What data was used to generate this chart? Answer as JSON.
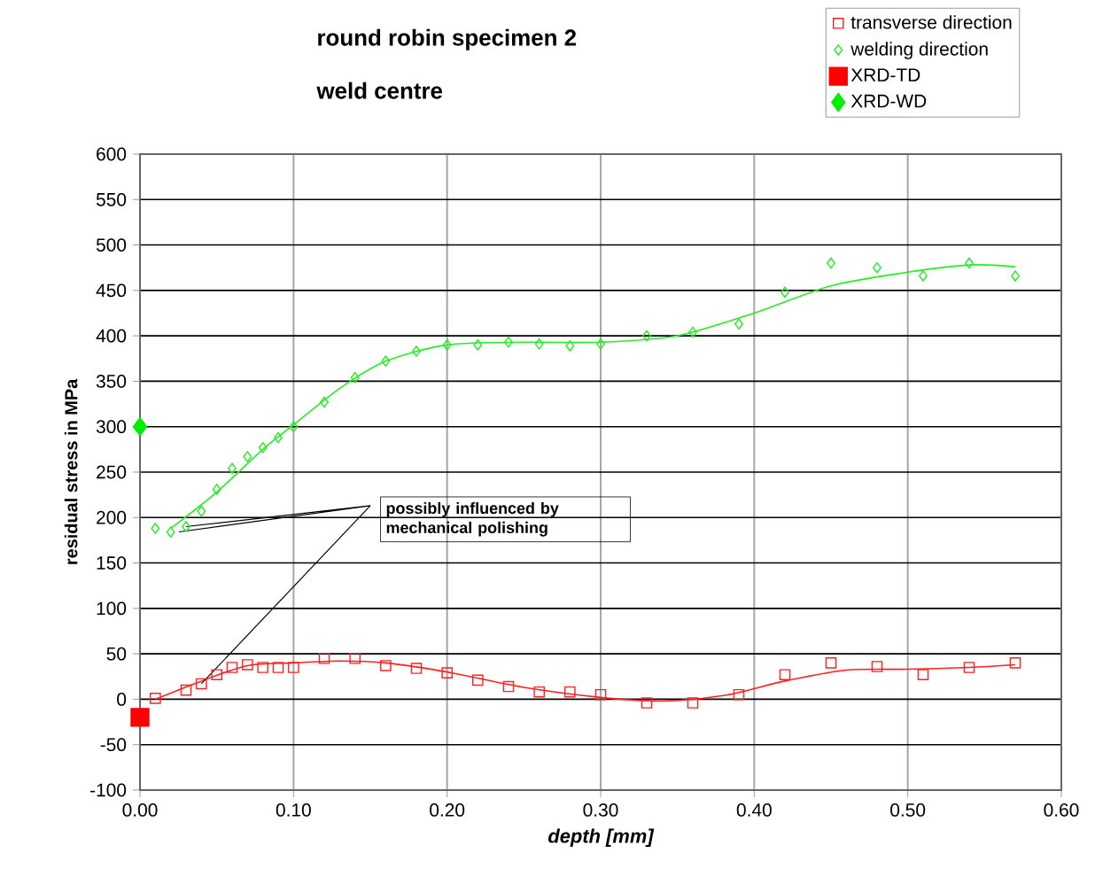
{
  "chart_data": {
    "type": "scatter",
    "title": "round robin specimen 2",
    "subtitle": "weld centre",
    "xlabel": "depth [mm]",
    "ylabel": "residual stress in MPa",
    "xlim": [
      0,
      0.6
    ],
    "ylim": [
      -100,
      600
    ],
    "xticks": [
      {
        "value": 0,
        "label": "0.00"
      },
      {
        "value": 0.1,
        "label": "0.10"
      },
      {
        "value": 0.2,
        "label": "0.20"
      },
      {
        "value": 0.3,
        "label": "0.30"
      },
      {
        "value": 0.4,
        "label": "0.40"
      },
      {
        "value": 0.5,
        "label": "0.50"
      },
      {
        "value": 0.6,
        "label": "0.60"
      }
    ],
    "yticks": [
      -100,
      -50,
      0,
      50,
      100,
      150,
      200,
      250,
      300,
      350,
      400,
      450,
      500,
      550,
      600
    ],
    "grid": true,
    "legend": "top right",
    "annotations": [
      {
        "text": "possibly influenced by mechanical polishing",
        "x": 0.03,
        "y": 190
      }
    ],
    "series": [
      {
        "name": "transverse direction",
        "color": "#ff2020",
        "marker": "square",
        "x": [
          0.01,
          0.03,
          0.04,
          0.05,
          0.06,
          0.07,
          0.08,
          0.09,
          0.1,
          0.12,
          0.14,
          0.16,
          0.18,
          0.2,
          0.22,
          0.24,
          0.26,
          0.28,
          0.3,
          0.33,
          0.36,
          0.39,
          0.42,
          0.45,
          0.48,
          0.51,
          0.54,
          0.57
        ],
        "values": [
          1,
          10,
          17,
          27,
          35,
          38,
          35,
          35,
          35,
          45,
          45,
          37,
          34,
          29,
          21,
          14,
          8,
          8,
          5,
          -4,
          -4,
          5,
          27,
          40,
          36,
          27,
          35,
          40
        ]
      },
      {
        "name": "welding direction",
        "color": "#22ee22",
        "marker": "diamond",
        "x": [
          0.01,
          0.02,
          0.03,
          0.04,
          0.05,
          0.06,
          0.07,
          0.08,
          0.09,
          0.1,
          0.12,
          0.14,
          0.16,
          0.18,
          0.2,
          0.22,
          0.24,
          0.26,
          0.28,
          0.3,
          0.33,
          0.36,
          0.39,
          0.42,
          0.45,
          0.48,
          0.51,
          0.54,
          0.57
        ],
        "values": [
          188,
          184,
          190,
          207,
          231,
          254,
          267,
          277,
          288,
          300,
          327,
          354,
          372,
          383,
          390,
          390,
          393,
          391,
          389,
          391,
          400,
          404,
          413,
          448,
          480,
          475,
          466,
          480,
          466
        ]
      },
      {
        "name": "XRD-TD",
        "color": "#ff0000",
        "marker": "square",
        "x": [
          0
        ],
        "values": [
          -20
        ]
      },
      {
        "name": "XRD-WD",
        "color": "#00ee00",
        "marker": "diamond",
        "x": [
          0
        ],
        "values": [
          300
        ]
      },
      {
        "type": "line",
        "color": "#ff2020",
        "marker": "none",
        "x": [
          0.01,
          0.04,
          0.07,
          0.1,
          0.13,
          0.16,
          0.2,
          0.25,
          0.3,
          0.34,
          0.38,
          0.42,
          0.46,
          0.5,
          0.54,
          0.57
        ],
        "values": [
          0,
          20,
          37,
          40,
          42,
          40,
          30,
          13,
          2,
          -2,
          4,
          20,
          32,
          33,
          35,
          38
        ]
      },
      {
        "type": "line",
        "color": "#22ee22",
        "marker": "none",
        "x": [
          0.02,
          0.05,
          0.08,
          0.1,
          0.13,
          0.16,
          0.2,
          0.25,
          0.3,
          0.35,
          0.4,
          0.45,
          0.5,
          0.54,
          0.57
        ],
        "values": [
          188,
          228,
          275,
          302,
          342,
          372,
          390,
          393,
          393,
          400,
          425,
          455,
          470,
          478,
          476
        ]
      }
    ]
  }
}
